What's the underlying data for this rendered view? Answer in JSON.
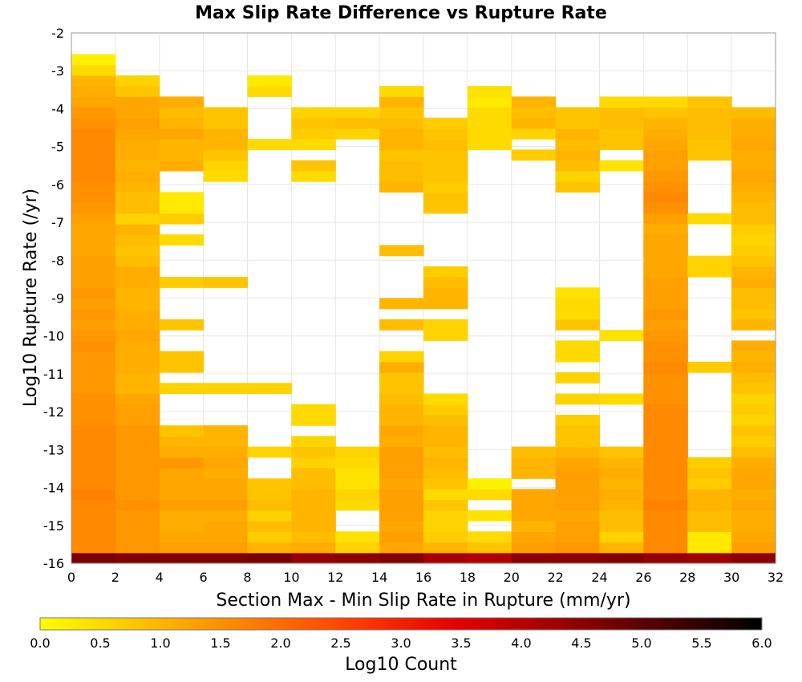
{
  "chart_data": {
    "type": "heatmap",
    "title": "Max Slip Rate Difference vs Rupture Rate",
    "xlabel": "Section Max - Min Slip Rate in Rupture (mm/yr)",
    "ylabel": "Log10 Rupture Rate (/yr)",
    "xlim": [
      0,
      32
    ],
    "ylim": [
      -16,
      -2
    ],
    "x_ticks": [
      "0",
      "2",
      "4",
      "6",
      "8",
      "10",
      "12",
      "14",
      "16",
      "18",
      "20",
      "22",
      "24",
      "26",
      "28",
      "30",
      "32"
    ],
    "y_ticks": [
      "-2",
      "-3",
      "-4",
      "-5",
      "-6",
      "-7",
      "-8",
      "-9",
      "-10",
      "-11",
      "-12",
      "-13",
      "-14",
      "-15",
      "-16"
    ],
    "grid": true,
    "x_bin_width": 2,
    "y_bin_height": 0.28,
    "x_bins_left": [
      0,
      2,
      4,
      6,
      8,
      10,
      12,
      14,
      16,
      18,
      20,
      22,
      24,
      26,
      28,
      30
    ],
    "y_bins_bottom": [
      -16.0,
      -15.72,
      -15.44,
      -15.16,
      -14.88,
      -14.6,
      -14.32,
      -14.04,
      -13.76,
      -13.48,
      -13.2,
      -12.92,
      -12.64,
      -12.36,
      -12.08,
      -11.8,
      -11.52,
      -11.24,
      -10.96,
      -10.68,
      -10.4,
      -10.12,
      -9.84,
      -9.56,
      -9.28,
      -9.0,
      -8.72,
      -8.44,
      -8.16,
      -7.88,
      -7.6,
      -7.32,
      -7.04,
      -6.76,
      -6.48,
      -6.2,
      -5.92,
      -5.64,
      -5.36,
      -5.08,
      -4.8,
      -4.52,
      -4.24,
      -3.96,
      -3.68,
      -3.4,
      -3.12,
      -2.84
    ],
    "log10_counts": [
      [
        4.7,
        4.6,
        4.6,
        4.6,
        4.7,
        4.4,
        4.5,
        4.6,
        4.2,
        4.1,
        4.5,
        4.5,
        4.6,
        4.4,
        4.3,
        4.5
      ],
      [
        1.6,
        1.4,
        1.3,
        1.3,
        1.0,
        1.1,
        0.6,
        1.2,
        1.0,
        0.8,
        1.3,
        1.4,
        1.0,
        1.6,
        0.3,
        1.3
      ],
      [
        1.6,
        1.4,
        1.2,
        1.2,
        0.7,
        0.9,
        0.4,
        1.3,
        0.7,
        0.5,
        1.2,
        1.3,
        0.6,
        1.6,
        0.3,
        1.2
      ],
      [
        1.6,
        1.4,
        1.1,
        1.2,
        0.9,
        1.0,
        null,
        1.2,
        0.6,
        null,
        1.0,
        1.3,
        0.9,
        1.6,
        0.9,
        1.1
      ],
      [
        1.6,
        1.4,
        1.1,
        1.1,
        0.6,
        1.0,
        null,
        1.3,
        0.6,
        0.4,
        1.2,
        1.2,
        0.9,
        1.6,
        0.9,
        1.1
      ],
      [
        1.6,
        1.5,
        1.3,
        1.3,
        0.9,
        1.0,
        0.5,
        1.3,
        0.8,
        null,
        1.2,
        1.3,
        1.0,
        1.7,
        1.0,
        1.2
      ],
      [
        1.7,
        1.4,
        1.2,
        1.2,
        0.8,
        1.0,
        0.6,
        1.3,
        0.5,
        0.5,
        1.2,
        1.3,
        1.1,
        1.6,
        1.0,
        1.1
      ],
      [
        1.6,
        1.4,
        1.2,
        1.2,
        0.8,
        0.9,
        0.4,
        1.2,
        0.8,
        0.2,
        null,
        1.3,
        1.0,
        1.6,
        0.7,
        1.2
      ],
      [
        1.6,
        1.4,
        1.2,
        1.1,
        null,
        0.9,
        0.4,
        1.3,
        0.9,
        null,
        1.0,
        1.3,
        1.1,
        1.6,
        0.8,
        1.2
      ],
      [
        1.6,
        1.4,
        1.4,
        1.2,
        null,
        0.6,
        0.5,
        1.3,
        1.0,
        null,
        1.0,
        1.2,
        1.0,
        1.6,
        0.7,
        1.1
      ],
      [
        1.6,
        1.4,
        1.1,
        1.1,
        0.6,
        0.8,
        0.6,
        1.3,
        0.9,
        null,
        0.9,
        1.0,
        0.8,
        1.6,
        null,
        0.9
      ],
      [
        1.6,
        1.4,
        1.0,
        1.0,
        null,
        0.6,
        null,
        1.1,
        1.0,
        null,
        null,
        0.8,
        null,
        1.6,
        null,
        0.7
      ],
      [
        1.6,
        1.4,
        0.8,
        1.0,
        null,
        null,
        null,
        1.2,
        1.0,
        null,
        null,
        0.8,
        null,
        1.6,
        null,
        0.8
      ],
      [
        1.5,
        1.3,
        null,
        null,
        null,
        0.5,
        null,
        1.0,
        0.9,
        null,
        null,
        0.7,
        null,
        1.6,
        null,
        0.6
      ],
      [
        1.5,
        1.3,
        null,
        null,
        null,
        0.5,
        null,
        1.0,
        0.7,
        null,
        null,
        null,
        null,
        1.6,
        null,
        0.7
      ],
      [
        1.5,
        1.2,
        null,
        null,
        null,
        null,
        null,
        0.9,
        0.5,
        null,
        null,
        0.6,
        0.5,
        1.5,
        null,
        0.6
      ],
      [
        1.4,
        1.0,
        0.6,
        0.6,
        0.6,
        null,
        null,
        0.8,
        null,
        null,
        null,
        null,
        null,
        1.5,
        null,
        0.8
      ],
      [
        1.4,
        1.0,
        null,
        null,
        null,
        null,
        null,
        0.8,
        null,
        null,
        null,
        0.6,
        null,
        1.5,
        null,
        0.9
      ],
      [
        1.4,
        1.1,
        0.8,
        null,
        null,
        null,
        null,
        1.1,
        null,
        null,
        null,
        null,
        null,
        1.6,
        0.7,
        1.1
      ],
      [
        1.4,
        1.1,
        0.8,
        null,
        null,
        null,
        null,
        0.6,
        null,
        null,
        null,
        0.5,
        null,
        1.5,
        null,
        1.0
      ],
      [
        1.5,
        1.1,
        null,
        null,
        null,
        null,
        null,
        null,
        null,
        null,
        null,
        0.5,
        null,
        1.5,
        null,
        1.1
      ],
      [
        1.4,
        1.2,
        null,
        null,
        null,
        null,
        null,
        null,
        0.6,
        null,
        null,
        null,
        0.4,
        1.4,
        null,
        null
      ],
      [
        1.3,
        1.1,
        0.8,
        null,
        null,
        null,
        null,
        0.9,
        0.6,
        null,
        null,
        0.8,
        null,
        1.3,
        null,
        1.0
      ],
      [
        1.4,
        1.1,
        null,
        null,
        null,
        null,
        null,
        null,
        null,
        null,
        null,
        0.5,
        null,
        1.4,
        null,
        0.8
      ],
      [
        1.3,
        1.0,
        null,
        null,
        null,
        null,
        null,
        1.0,
        1.0,
        null,
        null,
        0.5,
        null,
        1.3,
        null,
        0.9
      ],
      [
        1.4,
        1.0,
        null,
        null,
        null,
        null,
        null,
        null,
        1.0,
        null,
        null,
        0.4,
        null,
        1.3,
        null,
        0.9
      ],
      [
        1.3,
        1.1,
        0.7,
        0.8,
        null,
        null,
        null,
        null,
        0.9,
        null,
        null,
        null,
        null,
        1.3,
        null,
        1.1
      ],
      [
        1.3,
        1.1,
        null,
        null,
        null,
        null,
        null,
        null,
        0.7,
        null,
        null,
        null,
        null,
        1.2,
        0.6,
        1.0
      ],
      [
        1.3,
        0.9,
        null,
        null,
        null,
        null,
        null,
        null,
        null,
        null,
        null,
        null,
        null,
        1.2,
        0.6,
        0.8
      ],
      [
        1.2,
        0.8,
        null,
        null,
        null,
        null,
        null,
        0.9,
        null,
        null,
        null,
        null,
        null,
        1.2,
        null,
        0.7
      ],
      [
        1.2,
        0.9,
        0.5,
        null,
        null,
        null,
        null,
        null,
        null,
        null,
        null,
        null,
        null,
        1.2,
        null,
        0.6
      ],
      [
        1.2,
        1.0,
        null,
        null,
        null,
        null,
        null,
        null,
        null,
        null,
        null,
        null,
        null,
        1.1,
        null,
        0.7
      ],
      [
        1.3,
        0.6,
        0.7,
        null,
        null,
        null,
        null,
        null,
        null,
        null,
        null,
        null,
        null,
        1.3,
        0.5,
        0.9
      ],
      [
        1.4,
        0.9,
        0.3,
        null,
        null,
        null,
        null,
        null,
        0.8,
        null,
        null,
        null,
        null,
        1.5,
        null,
        0.9
      ],
      [
        1.5,
        0.9,
        0.3,
        null,
        null,
        null,
        null,
        null,
        0.8,
        null,
        null,
        null,
        null,
        1.6,
        null,
        1.0
      ],
      [
        1.5,
        1.0,
        null,
        null,
        null,
        null,
        null,
        1.0,
        0.7,
        null,
        null,
        0.8,
        null,
        1.5,
        null,
        1.1
      ],
      [
        1.6,
        1.1,
        null,
        0.5,
        null,
        0.5,
        null,
        0.9,
        0.8,
        null,
        null,
        0.6,
        null,
        1.4,
        null,
        1.2
      ],
      [
        1.6,
        1.0,
        1.1,
        0.6,
        null,
        0.8,
        null,
        0.9,
        0.8,
        null,
        null,
        0.9,
        0.4,
        1.3,
        null,
        1.1
      ],
      [
        1.6,
        1.1,
        1.0,
        0.8,
        null,
        null,
        null,
        0.8,
        0.8,
        null,
        0.7,
        1.0,
        null,
        1.3,
        0.8,
        1.1
      ],
      [
        1.6,
        1.1,
        1.0,
        1.0,
        0.5,
        0.5,
        null,
        1.0,
        0.9,
        0.5,
        null,
        0.9,
        0.8,
        1.2,
        0.8,
        1.2
      ],
      [
        1.6,
        1.2,
        1.2,
        1.0,
        null,
        0.7,
        0.6,
        1.0,
        0.8,
        0.5,
        0.6,
        1.0,
        0.8,
        1.1,
        0.9,
        1.1
      ],
      [
        1.5,
        1.3,
        1.0,
        0.8,
        null,
        0.8,
        0.9,
        0.9,
        0.7,
        0.5,
        1.0,
        0.8,
        0.9,
        1.0,
        0.9,
        1.1
      ],
      [
        1.4,
        1.2,
        0.9,
        0.8,
        null,
        0.6,
        0.6,
        0.8,
        null,
        0.5,
        0.9,
        0.8,
        0.9,
        0.8,
        0.9,
        0.9
      ],
      [
        1.2,
        1.2,
        1.1,
        null,
        null,
        null,
        null,
        1.0,
        null,
        0.3,
        1.0,
        null,
        0.5,
        0.5,
        0.8,
        null
      ],
      [
        1.1,
        0.8,
        null,
        null,
        0.5,
        null,
        null,
        0.5,
        null,
        0.4,
        null,
        null,
        null,
        null,
        null,
        null
      ],
      [
        1.0,
        0.6,
        null,
        null,
        0.3,
        null,
        null,
        null,
        null,
        null,
        null,
        null,
        null,
        null,
        null,
        null
      ],
      [
        0.5,
        null,
        null,
        null,
        null,
        null,
        null,
        null,
        null,
        null,
        null,
        null,
        null,
        null,
        null,
        null
      ],
      [
        0.2,
        null,
        null,
        null,
        null,
        null,
        null,
        null,
        null,
        null,
        null,
        null,
        null,
        null,
        null,
        null
      ]
    ],
    "colorbar": {
      "label": "Log10 Count",
      "min": 0,
      "max": 6,
      "ticks": [
        "0.0",
        "0.5",
        "1.0",
        "1.5",
        "2.0",
        "2.5",
        "3.0",
        "3.5",
        "4.0",
        "4.5",
        "5.0",
        "5.5",
        "6.0"
      ],
      "colormap": [
        "#ffff00",
        "#ffc000",
        "#ff8000",
        "#ff4000",
        "#e80000",
        "#a00000",
        "#500000",
        "#000000"
      ]
    }
  }
}
